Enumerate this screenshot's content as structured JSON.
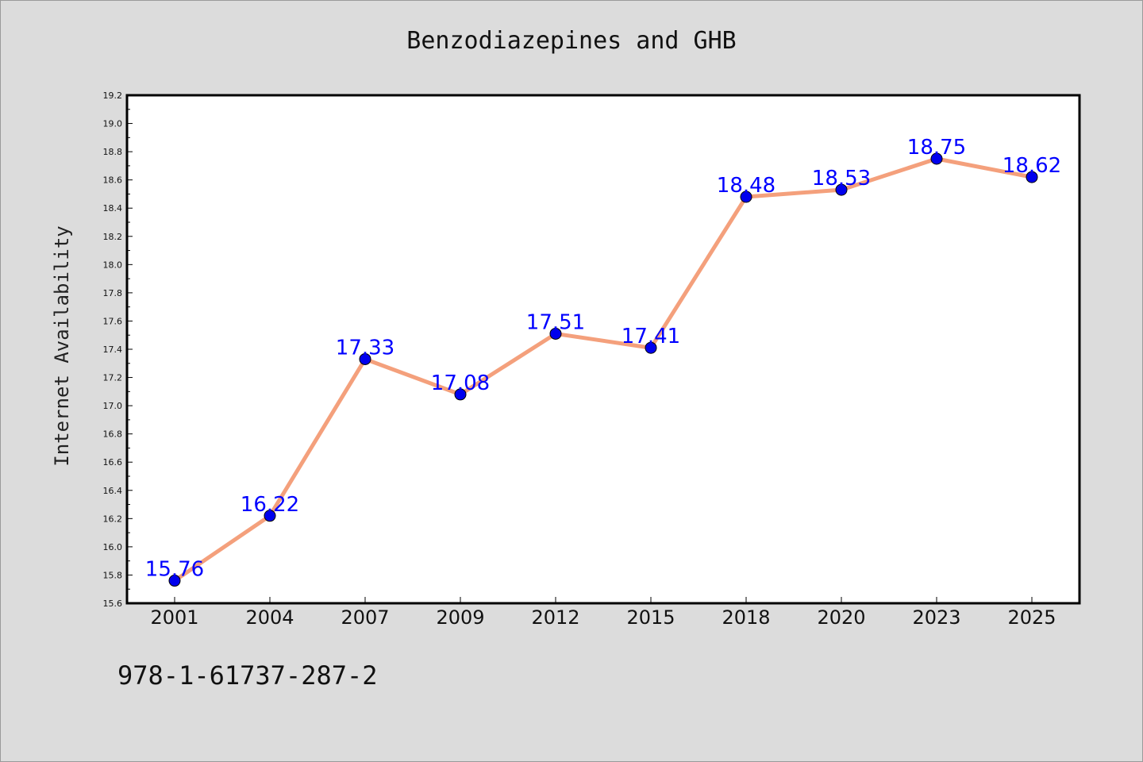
{
  "footnote": "978-1-61737-287-2",
  "chart_data": {
    "type": "line",
    "title": "Benzodiazepines and GHB",
    "xlabel": "",
    "ylabel": "Internet Availability",
    "categories": [
      "2001",
      "2004",
      "2007",
      "2009",
      "2012",
      "2015",
      "2018",
      "2020",
      "2023",
      "2025"
    ],
    "series": [
      {
        "values": [
          15.76,
          16.22,
          17.33,
          17.08,
          17.51,
          17.41,
          18.48,
          18.53,
          18.75,
          18.62
        ]
      }
    ],
    "data_labels": [
      "15.76",
      "16.22",
      "17.33",
      "17.08",
      "17.51",
      "17.41",
      "18.48",
      "18.53",
      "18.75",
      "18.62"
    ],
    "ylim": [
      15.6,
      19.2
    ],
    "yticks": [
      "15.6",
      "15.8",
      "16.0",
      "16.2",
      "16.4",
      "16.6",
      "16.8",
      "17.0",
      "17.2",
      "17.4",
      "17.6",
      "17.8",
      "18.0",
      "18.2",
      "18.4",
      "18.6",
      "18.8",
      "19.0",
      "19.2"
    ],
    "grid": false,
    "colors": {
      "line": "#f4a07c",
      "marker": "#0000ee",
      "label": "#0000ff",
      "plot_bg": "#ffffff",
      "figure_bg": "#dcdcdc"
    }
  }
}
